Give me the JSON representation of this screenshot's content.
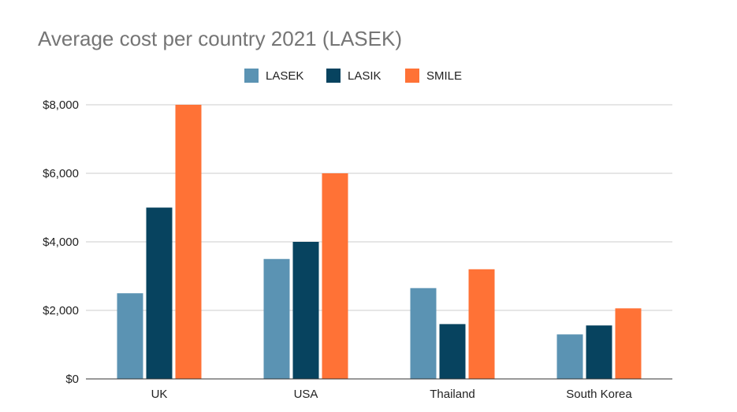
{
  "chart_data": {
    "type": "bar",
    "title": "Average cost per country 2021 (LASEK)",
    "categories": [
      "UK",
      "USA",
      "Thailand",
      "South Korea"
    ],
    "series": [
      {
        "name": "LASEK",
        "color": "#5b93b3",
        "values": [
          2500,
          3500,
          2650,
          1300
        ]
      },
      {
        "name": "LASIK",
        "color": "#07435f",
        "values": [
          5000,
          4000,
          1600,
          1560
        ]
      },
      {
        "name": "SMILE",
        "color": "#ff7236",
        "values": [
          8000,
          6000,
          3200,
          2060
        ]
      }
    ],
    "ylim": [
      0,
      8000
    ],
    "yticks": [
      0,
      2000,
      4000,
      6000,
      8000
    ],
    "ytick_labels": [
      "$0",
      "$2,000",
      "$4,000",
      "$6,000",
      "$8,000"
    ],
    "xlabel": "",
    "ylabel": "",
    "grid": true,
    "legend_position": "top-center"
  }
}
